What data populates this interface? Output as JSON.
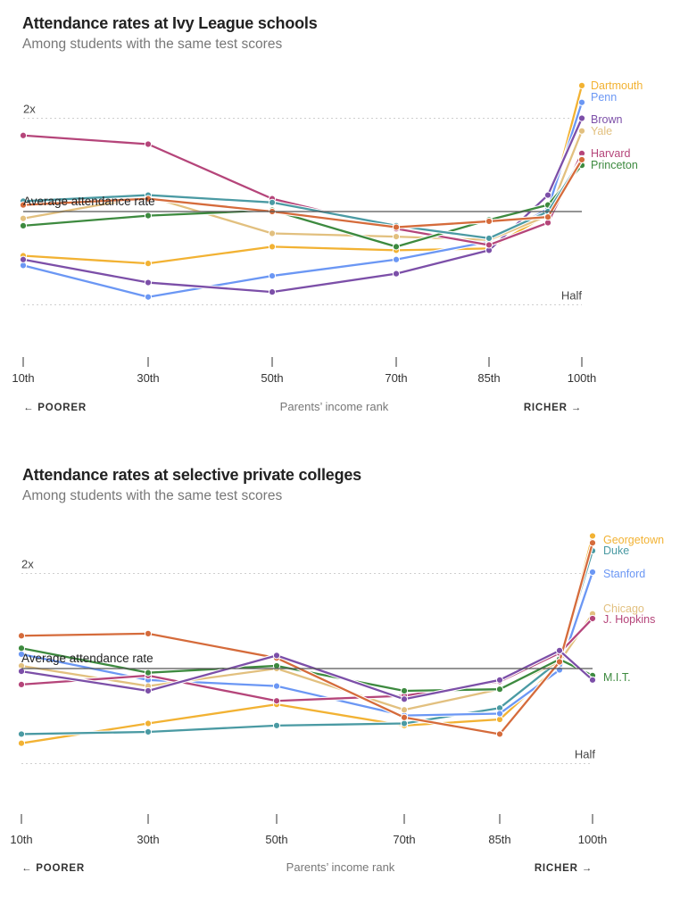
{
  "chart_data": [
    {
      "type": "line",
      "title": "Attendance rates at Ivy League schools",
      "subtitle": "Among students with the same test scores",
      "xlabel": "Parents’ income rank",
      "x_direction_left": "← POORER",
      "x_direction_right": "RICHER →",
      "x": [
        10,
        30,
        50,
        70,
        85,
        95,
        100
      ],
      "x_tick_values": [
        10,
        30,
        50,
        70,
        85,
        100
      ],
      "x_tick_labels": [
        "10th",
        "30th",
        "50th",
        "70th",
        "85th",
        "100th"
      ],
      "y_scale": "log2",
      "ylim": [
        0.42,
        2.7
      ],
      "reference_lines": [
        {
          "value": 2,
          "label": "2x",
          "style": "dotted"
        },
        {
          "value": 1,
          "label": "Average attendance rate",
          "style": "solid"
        },
        {
          "value": 0.5,
          "label": "Half",
          "style": "dotted"
        }
      ],
      "grid": false,
      "legend": "right-end labels",
      "series": [
        {
          "name": "Dartmouth",
          "label": "Dartmouth",
          "color": "#f2b233",
          "values": [
            0.72,
            0.68,
            0.77,
            0.75,
            0.76,
            0.98,
            2.55
          ]
        },
        {
          "name": "Penn",
          "label": "Penn",
          "color": "#6b97f4",
          "values": [
            0.67,
            0.53,
            0.62,
            0.7,
            0.8,
            1.02,
            2.25
          ]
        },
        {
          "name": "Brown",
          "label": "Brown",
          "color": "#7c4fa8",
          "values": [
            0.7,
            0.59,
            0.55,
            0.63,
            0.75,
            1.13,
            2.0
          ]
        },
        {
          "name": "Yale",
          "label": "Yale",
          "color": "#e2c07f",
          "values": [
            0.95,
            1.12,
            0.85,
            0.83,
            0.81,
            0.97,
            1.82
          ]
        },
        {
          "name": "Harvard",
          "label": "Harvard",
          "color": "#b5457a",
          "values": [
            1.76,
            1.65,
            1.1,
            0.88,
            0.78,
            0.92,
            1.54
          ]
        },
        {
          "name": "Princeton",
          "label": "Princeton",
          "color": "#3d8a3f",
          "values": [
            0.9,
            0.97,
            1.01,
            0.77,
            0.94,
            1.05,
            1.41
          ]
        },
        {
          "name": "Unlabeled (teal)",
          "label": "",
          "color": "#4a9aa3",
          "values": [
            1.08,
            1.13,
            1.07,
            0.9,
            0.82,
            1.0,
            1.48
          ]
        },
        {
          "name": "Unlabeled (orange)",
          "label": "",
          "color": "#d56b3b",
          "values": [
            1.05,
            1.1,
            1.0,
            0.89,
            0.93,
            0.96,
            1.47
          ]
        }
      ]
    },
    {
      "type": "line",
      "title": "Attendance rates at selective private colleges",
      "subtitle": "Among students with the same test scores",
      "xlabel": "Parents’ income rank",
      "x_direction_left": "← POORER",
      "x_direction_right": "RICHER →",
      "x": [
        10,
        30,
        50,
        70,
        85,
        95,
        100
      ],
      "x_tick_values": [
        10,
        30,
        50,
        70,
        85,
        100
      ],
      "x_tick_labels": [
        "10th",
        "30th",
        "50th",
        "70th",
        "85th",
        "100th"
      ],
      "y_scale": "log2",
      "ylim": [
        0.42,
        2.7
      ],
      "reference_lines": [
        {
          "value": 2,
          "label": "2x",
          "style": "dotted"
        },
        {
          "value": 1,
          "label": "Average attendance rate",
          "style": "solid"
        },
        {
          "value": 0.5,
          "label": "Half",
          "style": "dotted"
        }
      ],
      "grid": false,
      "legend": "right-end labels",
      "series": [
        {
          "name": "Georgetown",
          "label": "Georgetown",
          "color": "#f2b233",
          "values": [
            0.58,
            0.67,
            0.77,
            0.66,
            0.69,
            1.03,
            2.63
          ]
        },
        {
          "name": "Duke",
          "label": "Duke",
          "color": "#4a9aa3",
          "values": [
            0.62,
            0.63,
            0.66,
            0.67,
            0.75,
            1.06,
            2.36
          ]
        },
        {
          "name": "Stanford",
          "label": "Stanford",
          "color": "#6b97f4",
          "values": [
            1.11,
            0.92,
            0.88,
            0.71,
            0.72,
            0.99,
            2.02
          ]
        },
        {
          "name": "Chicago",
          "label": "Chicago",
          "color": "#e2c07f",
          "values": [
            1.02,
            0.88,
            1.0,
            0.74,
            0.86,
            1.05,
            1.49
          ]
        },
        {
          "name": "J. Hopkins",
          "label": "J. Hopkins",
          "color": "#b5457a",
          "values": [
            0.89,
            0.95,
            0.79,
            0.82,
            0.91,
            1.12,
            1.44
          ]
        },
        {
          "name": "M.I.T.",
          "label": "M.I.T.",
          "color": "#3d8a3f",
          "values": [
            1.16,
            0.97,
            1.02,
            0.85,
            0.86,
            1.07,
            0.95
          ]
        },
        {
          "name": "Unlabeled (orange)",
          "label": "",
          "color": "#d56b3b",
          "values": [
            1.27,
            1.29,
            1.08,
            0.7,
            0.62,
            1.05,
            2.5
          ]
        },
        {
          "name": "Unlabeled (purple)",
          "label": "",
          "color": "#7c4fa8",
          "values": [
            0.98,
            0.85,
            1.1,
            0.8,
            0.92,
            1.14,
            0.92
          ]
        }
      ]
    }
  ]
}
